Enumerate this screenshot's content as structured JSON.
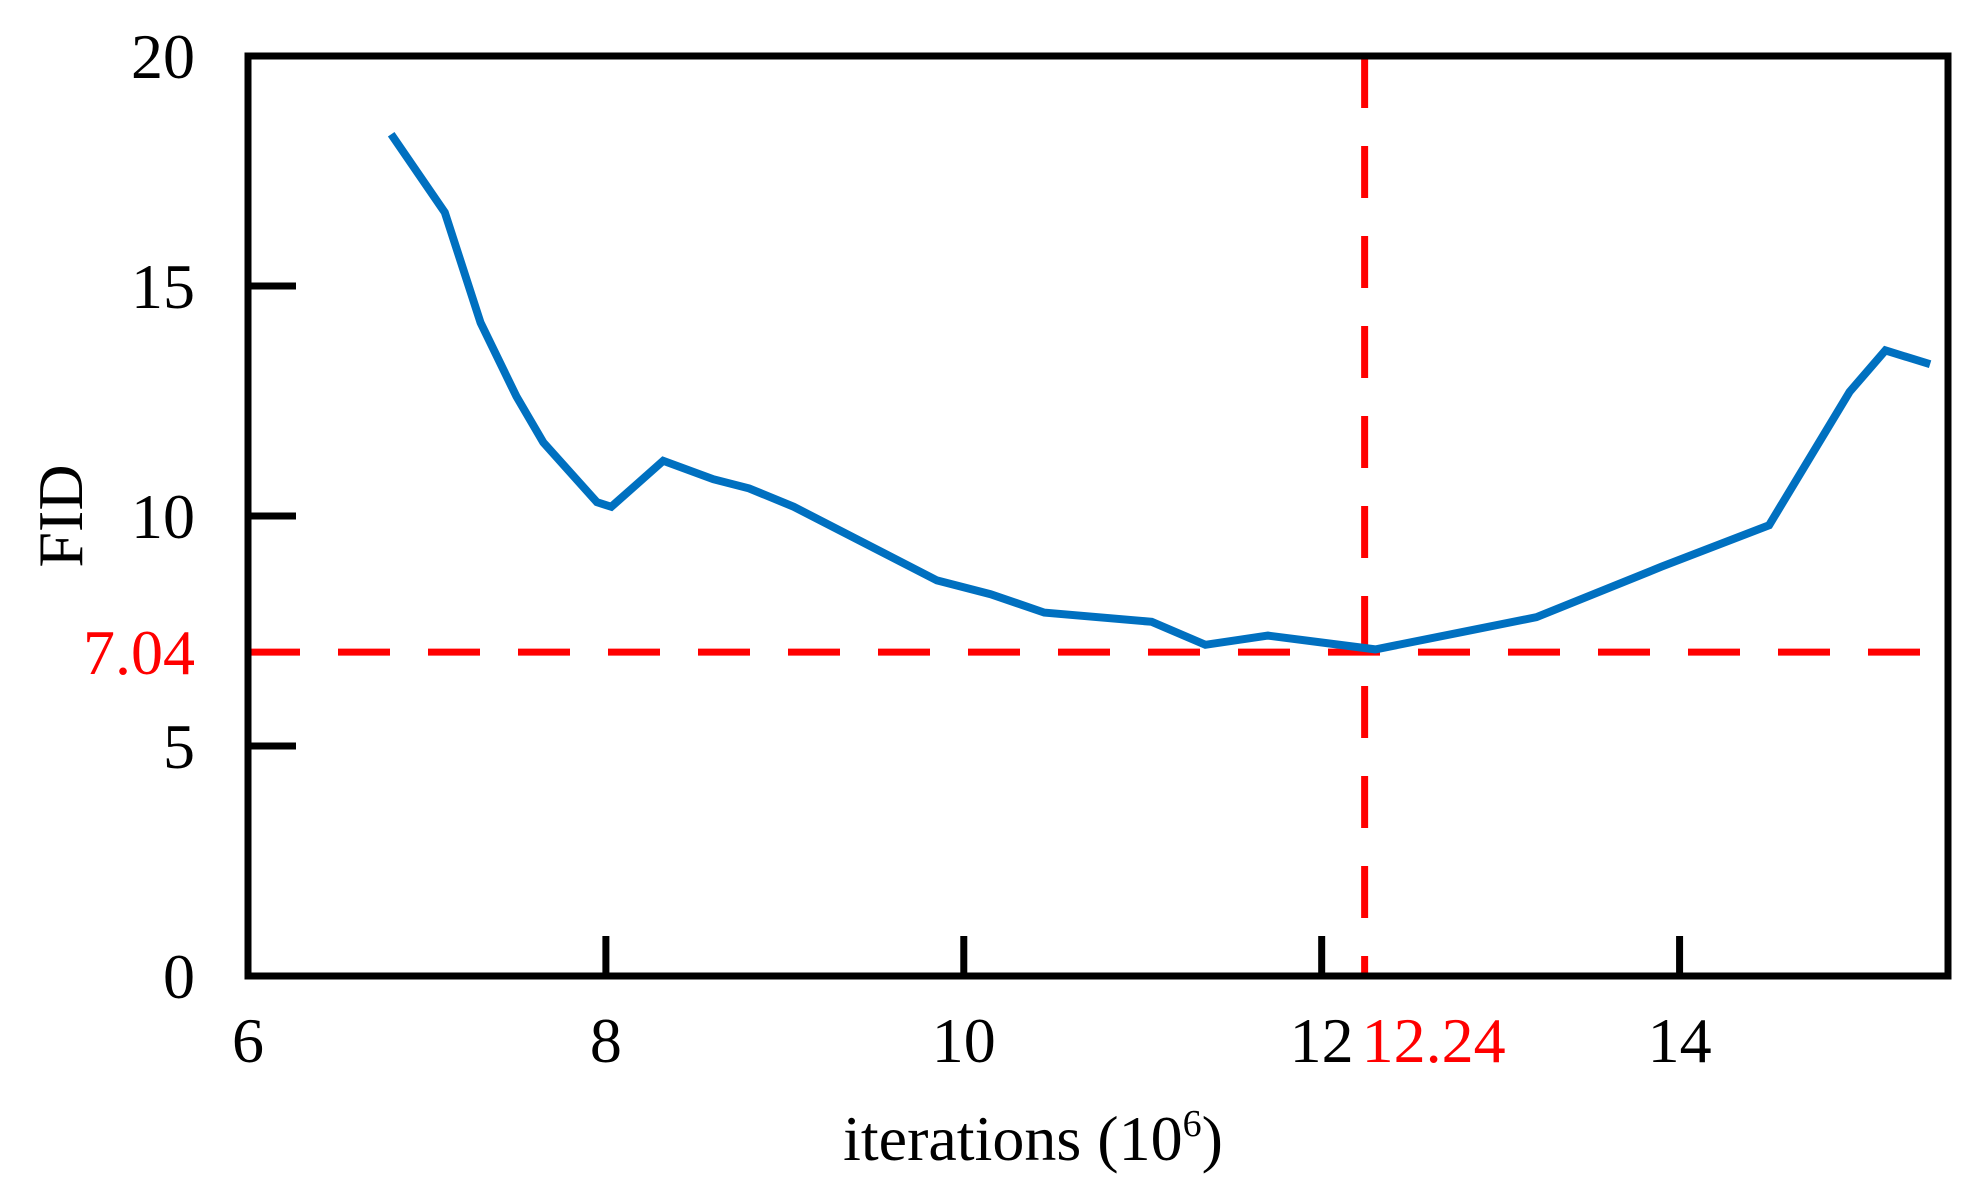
{
  "chart_data": {
    "type": "line",
    "xlabel": "iterations (10",
    "xlabel_exp": "6",
    "xlabel_close": ")",
    "ylabel": "FID",
    "xlim": [
      6,
      15.5
    ],
    "ylim": [
      0,
      20
    ],
    "xticks": [
      {
        "value": 6,
        "label": "6"
      },
      {
        "value": 8,
        "label": "8"
      },
      {
        "value": 10,
        "label": "10"
      },
      {
        "value": 12,
        "label": "12"
      },
      {
        "value": 14,
        "label": "14"
      }
    ],
    "yticks": [
      {
        "value": 0,
        "label": "0"
      },
      {
        "value": 5,
        "label": "5"
      },
      {
        "value": 10,
        "label": "10"
      },
      {
        "value": 15,
        "label": "15"
      },
      {
        "value": 20,
        "label": "20"
      }
    ],
    "grid": false,
    "series": [
      {
        "color": "#0070C0",
        "x": [
          6.8,
          7.1,
          7.3,
          7.5,
          7.65,
          7.95,
          8.03,
          8.32,
          8.6,
          8.8,
          9.05,
          9.5,
          9.85,
          10.15,
          10.45,
          11.05,
          11.35,
          11.7,
          12.3,
          13.2,
          13.9,
          14.5,
          14.95,
          15.15,
          15.4
        ],
        "y": [
          18.3,
          16.6,
          14.2,
          12.6,
          11.6,
          10.3,
          10.2,
          11.2,
          10.8,
          10.6,
          10.2,
          9.3,
          8.6,
          8.3,
          7.9,
          7.7,
          7.2,
          7.4,
          7.1,
          7.8,
          8.9,
          9.8,
          12.7,
          13.6,
          13.3
        ]
      }
    ],
    "reference_lines": {
      "color": "#FF0000",
      "horizontal": {
        "value": 7.04,
        "label": "7.04"
      },
      "vertical": {
        "value": 12.24,
        "label": "12.24"
      }
    }
  }
}
